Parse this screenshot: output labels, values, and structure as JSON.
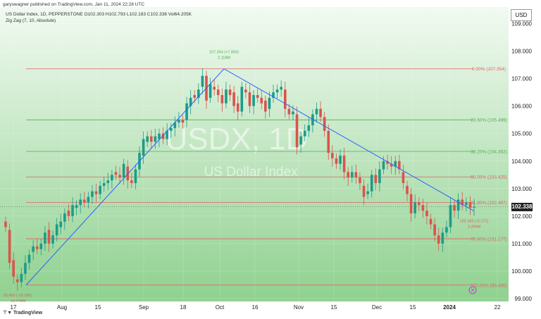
{
  "header": {
    "published": "garyswagner published on TradingView.com, Jan 11, 2024 22:28 UTC",
    "symbol_line": "US Dollar Index, 1D, PEPPERSTONE  O102.303  H102.793  L102.183  C102.338  Vol64.205K",
    "indicator": "Zig Zag (7, 10, Absolute)"
  },
  "currency_button": "USD",
  "last_price": "102.338",
  "footer_brand": "TradingView",
  "watermark": {
    "symbol": "USDX, 1D",
    "name": "US Dollar Index"
  },
  "colors": {
    "bg_top": "#f2faf2",
    "bg_bottom": "#8fd18f",
    "candle_up": "#1b9c8a",
    "candle_down": "#d9544d",
    "zigzag": "#2962ff",
    "fib_red": "#e06060",
    "fib_green": "#4caf50"
  },
  "chart_data": {
    "type": "candlestick",
    "y_range": [
      98.9,
      109.6
    ],
    "y_ticks": [
      99.0,
      100.0,
      101.0,
      102.0,
      103.0,
      104.0,
      105.0,
      106.0,
      107.0,
      108.0,
      109.0
    ],
    "x_ticks": [
      "17",
      "Aug",
      "15",
      "Sep",
      "18",
      "Oct",
      "16",
      "Nov",
      "15",
      "Dec",
      "15",
      "2024",
      "22"
    ],
    "fib_levels": [
      {
        "label": "0.00% (107.354)",
        "value": 107.354,
        "color": "red"
      },
      {
        "label": "23.60% (105.499)",
        "value": 105.499,
        "color": "green"
      },
      {
        "label": "38.20% (104.352)",
        "value": 104.352,
        "color": "green"
      },
      {
        "label": "50.00% (103.425)",
        "value": 103.425,
        "color": "red"
      },
      {
        "label": "61.80% (102.497)",
        "value": 102.497,
        "color": "red"
      },
      {
        "label": "78.60% (101.177)",
        "value": 101.177,
        "color": "red"
      },
      {
        "label": "100.00% (99.495)",
        "value": 99.495,
        "color": "red"
      }
    ],
    "zigzag_points": [
      {
        "x": "Jul 17",
        "y": 99.495,
        "label1": "99.495 (-15.185)",
        "label2": "-19.478M",
        "color": "red"
      },
      {
        "x": "Oct 3",
        "y": 107.354,
        "label1": "107.354 (+7.859)",
        "label2": "2.118M",
        "color": "green"
      },
      {
        "x": "Jan 9",
        "y": 102.183,
        "label1": "102.183 (-5.171)",
        "label2": "3.394M",
        "color": "red"
      }
    ],
    "candle_closes": [
      101.6,
      100.3,
      99.8,
      99.6,
      99.9,
      100.3,
      100.6,
      100.9,
      100.8,
      101.0,
      101.4,
      101.0,
      101.3,
      101.7,
      101.8,
      102.1,
      102.0,
      102.4,
      102.4,
      102.6,
      102.5,
      102.7,
      102.9,
      102.8,
      103.1,
      103.2,
      103.3,
      103.5,
      103.5,
      103.4,
      103.9,
      103.3,
      103.2,
      103.7,
      104.3,
      104.8,
      104.9,
      104.7,
      104.9,
      105.0,
      104.8,
      105.1,
      105.2,
      105.4,
      105.5,
      105.4,
      106.1,
      106.3,
      106.3,
      106.6,
      107.1,
      106.2,
      106.8,
      106.6,
      106.4,
      106.1,
      106.6,
      106.4,
      106.0,
      105.8,
      106.7,
      106.5,
      106.0,
      106.4,
      106.3,
      106.1,
      105.8,
      106.3,
      106.5,
      106.6,
      106.7,
      105.9,
      105.7,
      105.8,
      104.5,
      104.9,
      105.1,
      105.3,
      105.7,
      105.9,
      105.6,
      105.1,
      104.3,
      104.1,
      103.9,
      104.2,
      103.6,
      103.4,
      103.6,
      103.4,
      103.2,
      102.7,
      102.9,
      103.5,
      103.2,
      103.7,
      104.0,
      103.9,
      103.8,
      104.0,
      103.7,
      103.2,
      102.8,
      102.1,
      102.5,
      102.4,
      102.2,
      102.0,
      101.7,
      101.3,
      101.0,
      101.4,
      101.6,
      102.4,
      102.2,
      102.6,
      102.4,
      102.5,
      102.3,
      102.338
    ],
    "candle_opens": [
      101.8,
      101.5,
      100.4,
      99.7,
      99.6,
      99.9,
      100.3,
      100.7,
      100.9,
      100.8,
      101.0,
      101.5,
      101.0,
      101.3,
      101.6,
      101.8,
      102.2,
      102.0,
      102.3,
      102.4,
      102.6,
      102.5,
      102.7,
      102.9,
      102.8,
      103.1,
      103.2,
      103.3,
      103.6,
      103.5,
      103.4,
      103.8,
      103.3,
      103.2,
      103.7,
      104.2,
      104.7,
      104.9,
      104.7,
      104.8,
      105.0,
      104.8,
      105.1,
      105.2,
      105.4,
      105.5,
      105.5,
      106.0,
      106.4,
      106.3,
      106.7,
      107.1,
      106.3,
      106.7,
      106.6,
      106.4,
      106.1,
      106.6,
      106.5,
      106.1,
      105.8,
      106.6,
      106.5,
      106.0,
      106.4,
      106.3,
      106.2,
      105.9,
      106.3,
      106.5,
      106.6,
      106.6,
      105.9,
      105.7,
      105.7,
      104.6,
      104.9,
      105.1,
      105.3,
      105.7,
      105.9,
      105.6,
      105.1,
      104.3,
      104.1,
      103.9,
      104.2,
      103.6,
      103.4,
      103.6,
      103.4,
      103.1,
      102.8,
      102.9,
      103.5,
      103.2,
      103.7,
      104.0,
      103.9,
      103.8,
      104.0,
      103.6,
      103.1,
      102.8,
      102.1,
      102.5,
      102.4,
      102.2,
      101.9,
      101.7,
      101.3,
      101.0,
      101.4,
      101.6,
      102.4,
      102.2,
      102.6,
      102.4,
      102.5,
      102.303
    ],
    "x_start_label": "Jul 17",
    "x_end_label": "Jan 11"
  }
}
